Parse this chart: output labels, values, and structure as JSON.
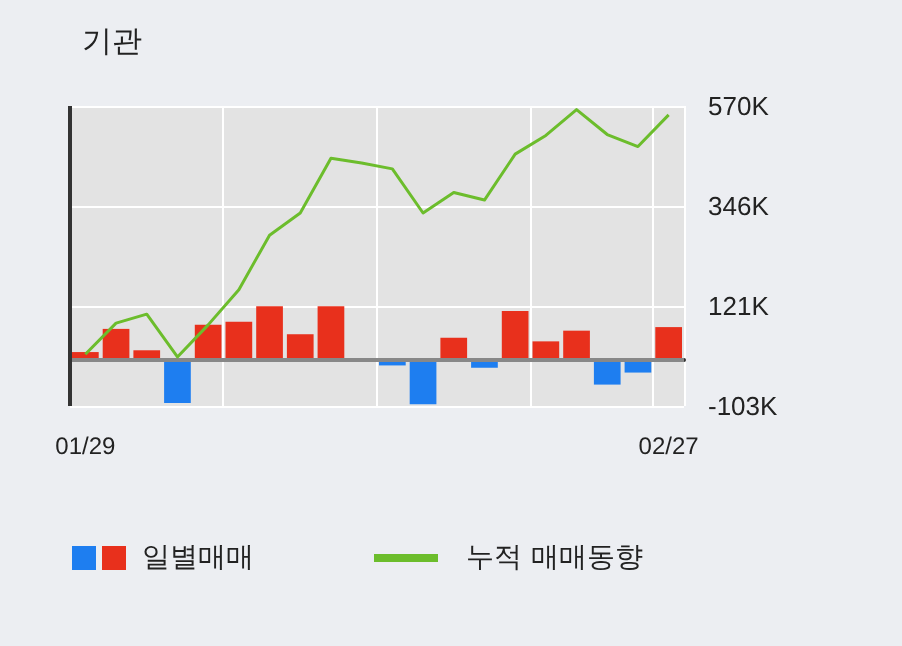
{
  "chart_data": {
    "type": "bar",
    "title": "기관",
    "categories": [
      "01/29",
      null,
      null,
      null,
      null,
      null,
      null,
      null,
      null,
      null,
      null,
      null,
      null,
      null,
      null,
      null,
      null,
      null,
      null,
      "02/27"
    ],
    "series": [
      {
        "name": "일별매매",
        "colors": [
          "#e8301c",
          "#e8301c",
          "#e8301c",
          "#1e7ef0",
          "#e8301c",
          "#e8301c",
          "#e8301c",
          "#e8301c",
          "#e8301c",
          "#e8301c",
          "#1e7ef0",
          "#1e7ef0",
          "#e8301c",
          "#1e7ef0",
          "#e8301c",
          "#e8301c",
          "#e8301c",
          "#1e7ef0",
          "#1e7ef0",
          "#e8301c"
        ],
        "values": [
          18000,
          70000,
          22000,
          -96000,
          79000,
          86000,
          121000,
          58000,
          121000,
          0,
          -12000,
          -99000,
          50000,
          -17000,
          110000,
          42000,
          66000,
          -55000,
          -28000,
          74000
        ]
      },
      {
        "name": "누적 매매동향",
        "type": "line",
        "color": "#6cbd2c",
        "values": [
          13000,
          83000,
          103000,
          7000,
          79000,
          158000,
          280000,
          330000,
          453000,
          442000,
          429000,
          330000,
          376000,
          359000,
          462000,
          504000,
          562000,
          506000,
          479000,
          550000
        ]
      }
    ],
    "ylim": [
      -103000,
      570000
    ],
    "yticks": [
      {
        "value": -103000,
        "label": "-103K"
      },
      {
        "value": 121000,
        "label": "121K"
      },
      {
        "value": 346000,
        "label": "346K"
      },
      {
        "value": 570000,
        "label": "570K"
      }
    ],
    "grid": true,
    "legend": "bottom",
    "marker": "none"
  }
}
